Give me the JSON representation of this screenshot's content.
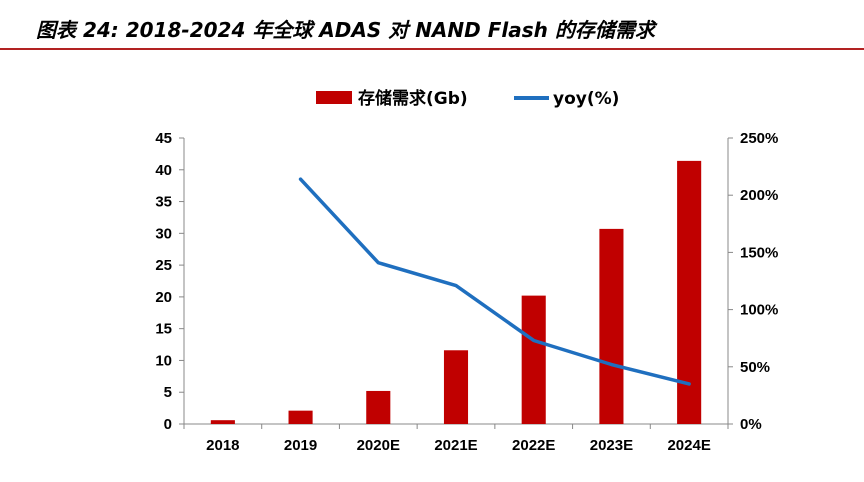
{
  "page": {
    "title": "图表 24: 2018-2024 年全球 ADAS 对 NAND Flash 的存储需求"
  },
  "chart_data": {
    "type": "bar",
    "categories": [
      "2018",
      "2019",
      "2020E",
      "2021E",
      "2022E",
      "2023E",
      "2024E"
    ],
    "series": [
      {
        "name": "存储需求(Gb)",
        "type": "bar",
        "axis": "left",
        "color": "#c00000",
        "values": [
          0.6,
          2.1,
          5.2,
          11.6,
          20.2,
          30.7,
          41.4
        ]
      },
      {
        "name": "yoy(%)",
        "type": "line",
        "axis": "right",
        "color": "#1f6fbf",
        "values": [
          null,
          214,
          141,
          121,
          73,
          52,
          35
        ]
      }
    ],
    "yleft": {
      "min": 0,
      "max": 45,
      "step": 5,
      "ticks": [
        "0",
        "5",
        "10",
        "15",
        "20",
        "25",
        "30",
        "35",
        "40",
        "45"
      ]
    },
    "yright": {
      "min": 0,
      "max": 250,
      "step": 50,
      "ticks": [
        "0%",
        "50%",
        "100%",
        "150%",
        "200%",
        "250%"
      ]
    },
    "legend_position": "top",
    "grid": false
  }
}
